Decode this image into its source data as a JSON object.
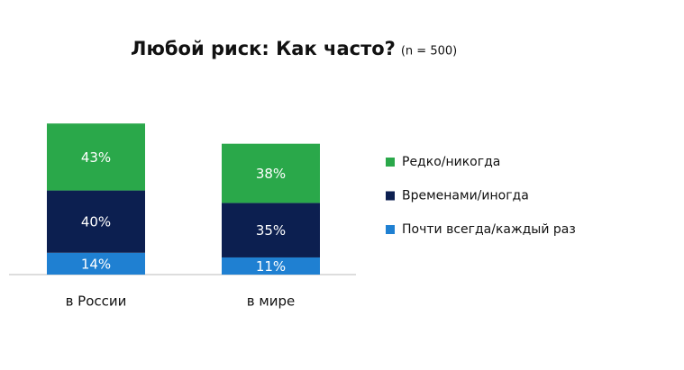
{
  "chart_data": {
    "type": "stacked-bar",
    "title": "Любой риск: Как часто?",
    "subtitle": "(n = 500)",
    "categories": [
      "в России",
      "в мире"
    ],
    "series": [
      {
        "name": "Редко/никогда",
        "color": "#2aa84a",
        "values": [
          43,
          38
        ],
        "value_labels": [
          "43%",
          "38%"
        ]
      },
      {
        "name": "Временами/иногда",
        "color": "#0c1f50",
        "values": [
          40,
          35
        ],
        "value_labels": [
          "40%",
          "35%"
        ]
      },
      {
        "name": "Почти всегда/каждый раз",
        "color": "#1f80d2",
        "values": [
          14,
          11
        ],
        "value_labels": [
          "14%",
          "11%"
        ]
      }
    ]
  }
}
